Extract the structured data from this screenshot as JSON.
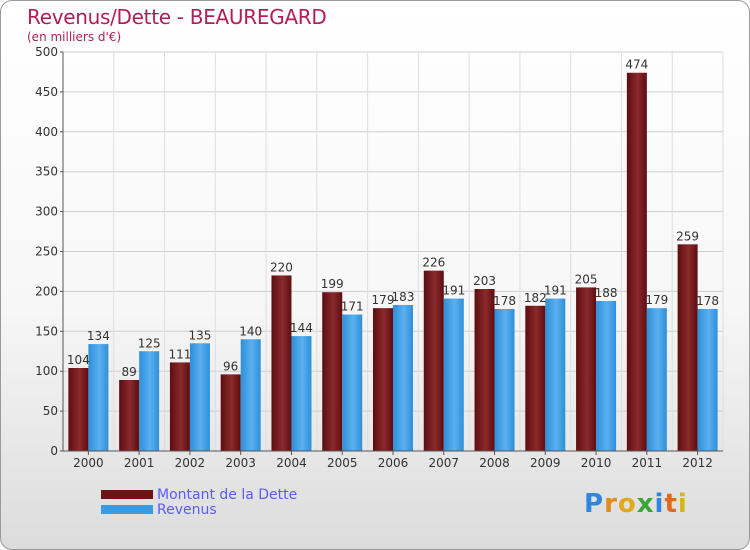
{
  "title": "Revenus/Dette - BEAUREGARD",
  "subtitle": "(en milliers d'€)",
  "brand": "Proxiti",
  "chart_data": {
    "type": "bar",
    "categories": [
      "2000",
      "2001",
      "2002",
      "2003",
      "2004",
      "2005",
      "2006",
      "2007",
      "2008",
      "2009",
      "2010",
      "2011",
      "2012"
    ],
    "series": [
      {
        "name": "Montant de la Dette",
        "color": "#6e1417",
        "values": [
          104,
          89,
          111,
          96,
          220,
          199,
          179,
          226,
          203,
          182,
          205,
          474,
          259
        ]
      },
      {
        "name": "Revenus",
        "color": "#3b9be0",
        "values": [
          134,
          125,
          135,
          140,
          144,
          171,
          183,
          191,
          178,
          191,
          188,
          179,
          178
        ]
      }
    ],
    "ylim": [
      0,
      500
    ],
    "yticks": [
      0,
      50,
      100,
      150,
      200,
      250,
      300,
      350,
      400,
      450,
      500
    ],
    "grid": true,
    "legend_position": "bottom-left"
  }
}
